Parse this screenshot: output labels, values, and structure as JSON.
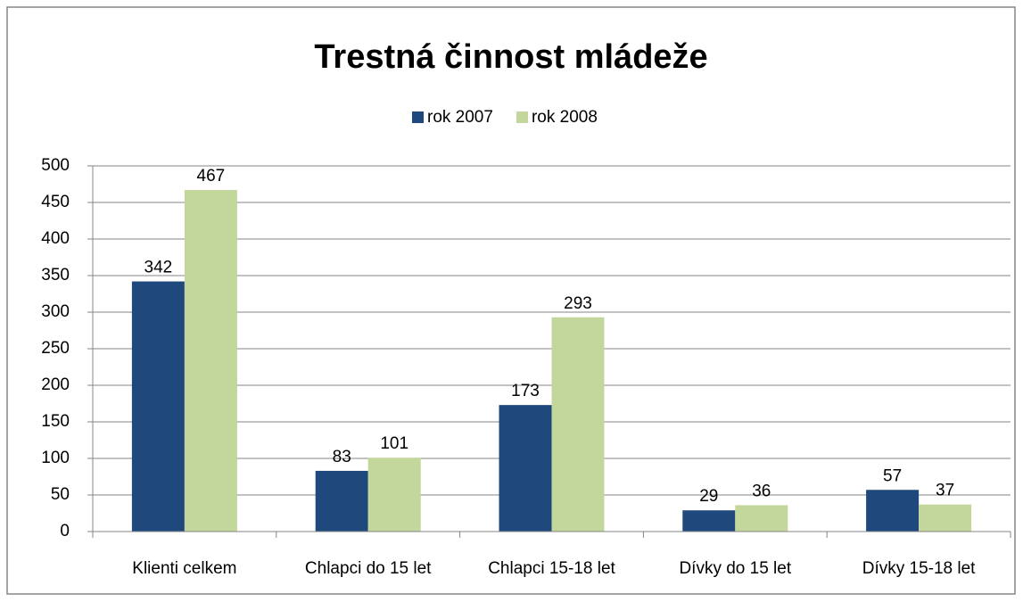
{
  "chart_data": {
    "type": "bar",
    "title": "Trestná činnost mládeže",
    "categories": [
      "Klienti celkem",
      "Chlapci do 15 let",
      "Chlapci 15-18 let",
      "Dívky do 15 let",
      "Dívky 15-18 let"
    ],
    "series": [
      {
        "name": "rok 2007",
        "color": "#1f497d",
        "values": [
          342,
          83,
          173,
          29,
          57
        ]
      },
      {
        "name": "rok 2008",
        "color": "#c3d69b",
        "values": [
          467,
          101,
          293,
          36,
          37
        ]
      }
    ],
    "ylim": [
      0,
      500
    ],
    "yticks": [
      0,
      50,
      100,
      150,
      200,
      250,
      300,
      350,
      400,
      450,
      500
    ],
    "grid": true,
    "legend": "top",
    "data_labels": true
  }
}
